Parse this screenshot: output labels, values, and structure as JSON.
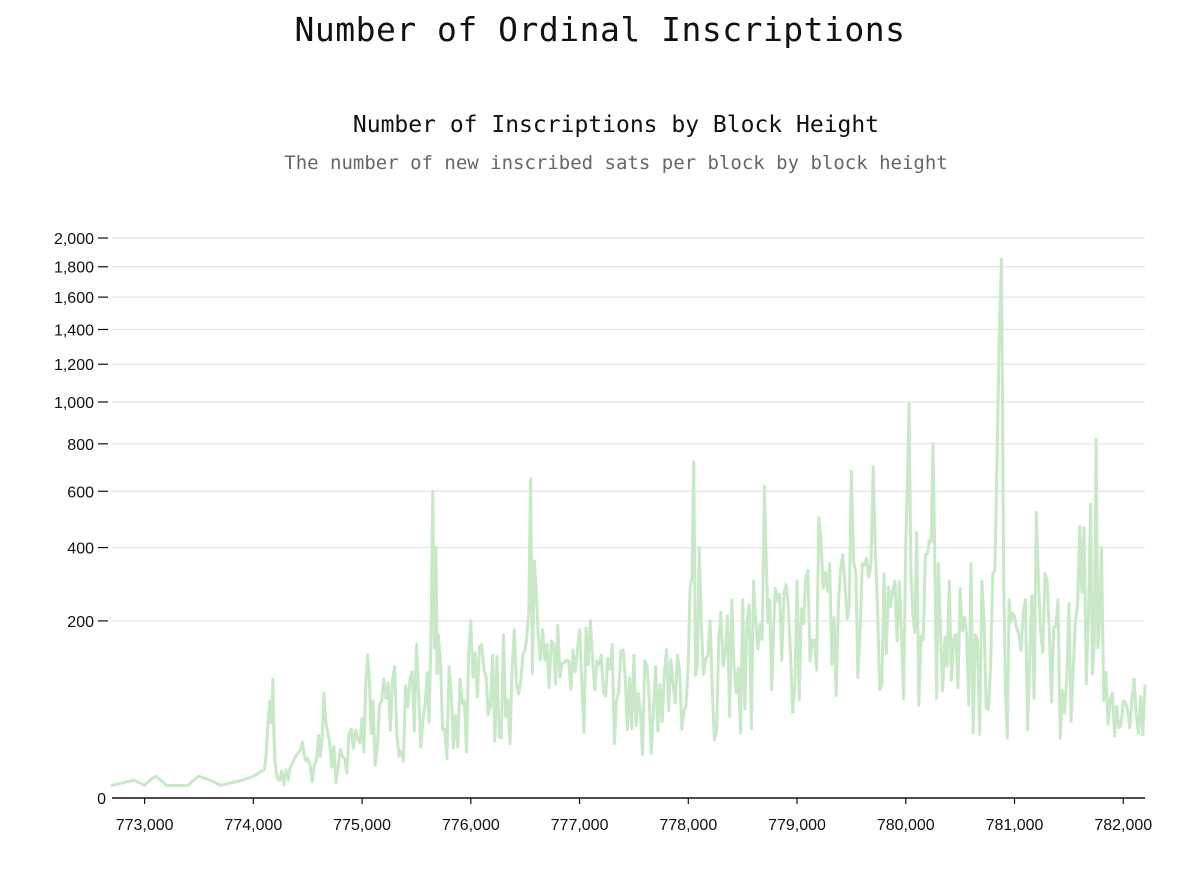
{
  "page": {
    "title": "Number of Ordinal Inscriptions"
  },
  "chart_data": {
    "type": "area",
    "title": "Number of Inscriptions by Block Height",
    "subtitle": "The number of new inscribed sats per block by block height",
    "xlabel": "",
    "ylabel": "",
    "y_scale": "sqrt",
    "xlim": [
      772700,
      782200
    ],
    "ylim": [
      0,
      2000
    ],
    "grid": true,
    "legend": "none",
    "color": "#c8e8c8",
    "x_ticks": [
      773000,
      774000,
      775000,
      776000,
      777000,
      778000,
      779000,
      780000,
      781000,
      782000
    ],
    "x_tick_labels": [
      "773,000",
      "774,000",
      "775,000",
      "776,000",
      "777,000",
      "778,000",
      "779,000",
      "780,000",
      "781,000",
      "782,000"
    ],
    "y_ticks": [
      0,
      200,
      400,
      600,
      800,
      1000,
      1200,
      1400,
      1600,
      1800,
      2000
    ],
    "y_tick_labels": [
      "0",
      "200",
      "400",
      "600",
      "800",
      "1,000",
      "1,200",
      "1,400",
      "1,600",
      "1,800",
      "2,000"
    ],
    "series": [
      {
        "x": [
          772700,
          772900,
          773000,
          773100,
          773200,
          773400,
          773500,
          773700,
          773900,
          774000,
          774100,
          774150,
          774180,
          774200,
          774300,
          774400,
          774450,
          774500,
          774600,
          774650,
          774700,
          774800,
          774900,
          775000,
          775050,
          775100,
          775200,
          775300,
          775400,
          775500,
          775600,
          775650,
          775680,
          775700,
          775800,
          775900,
          776000,
          776100,
          776200,
          776300,
          776400,
          776500,
          776550,
          776600,
          776700,
          776800,
          776900,
          777000,
          777100,
          777200,
          777300,
          777400,
          777500,
          777600,
          777700,
          777800,
          777900,
          778000,
          778050,
          778100,
          778200,
          778300,
          778400,
          778500,
          778600,
          778700,
          778750,
          778800,
          778900,
          779000,
          779100,
          779200,
          779300,
          779400,
          779500,
          779600,
          779700,
          779800,
          779900,
          780000,
          780030,
          780100,
          780200,
          780250,
          780300,
          780400,
          780500,
          780600,
          780700,
          780800,
          780880,
          780900,
          780950,
          781000,
          781100,
          781200,
          781300,
          781400,
          781500,
          781600,
          781700,
          781750,
          781800,
          781900,
          782000,
          782100,
          782200
        ],
        "y": [
          1,
          2,
          1,
          3,
          1,
          1,
          3,
          1,
          2,
          3,
          5,
          60,
          90,
          8,
          5,
          12,
          20,
          10,
          25,
          70,
          20,
          15,
          30,
          40,
          130,
          60,
          90,
          110,
          80,
          150,
          100,
          600,
          400,
          170,
          110,
          90,
          200,
          150,
          130,
          170,
          180,
          140,
          650,
          280,
          150,
          190,
          120,
          180,
          200,
          130,
          150,
          140,
          130,
          120,
          110,
          140,
          130,
          120,
          720,
          400,
          200,
          220,
          250,
          250,
          300,
          620,
          250,
          280,
          290,
          300,
          330,
          500,
          350,
          330,
          680,
          350,
          700,
          320,
          300,
          420,
          990,
          450,
          380,
          800,
          350,
          300,
          280,
          350,
          300,
          320,
          1850,
          330,
          250,
          210,
          250,
          520,
          300,
          250,
          240,
          470,
          550,
          820,
          400,
          70,
          60,
          90,
          80
        ]
      }
    ]
  }
}
